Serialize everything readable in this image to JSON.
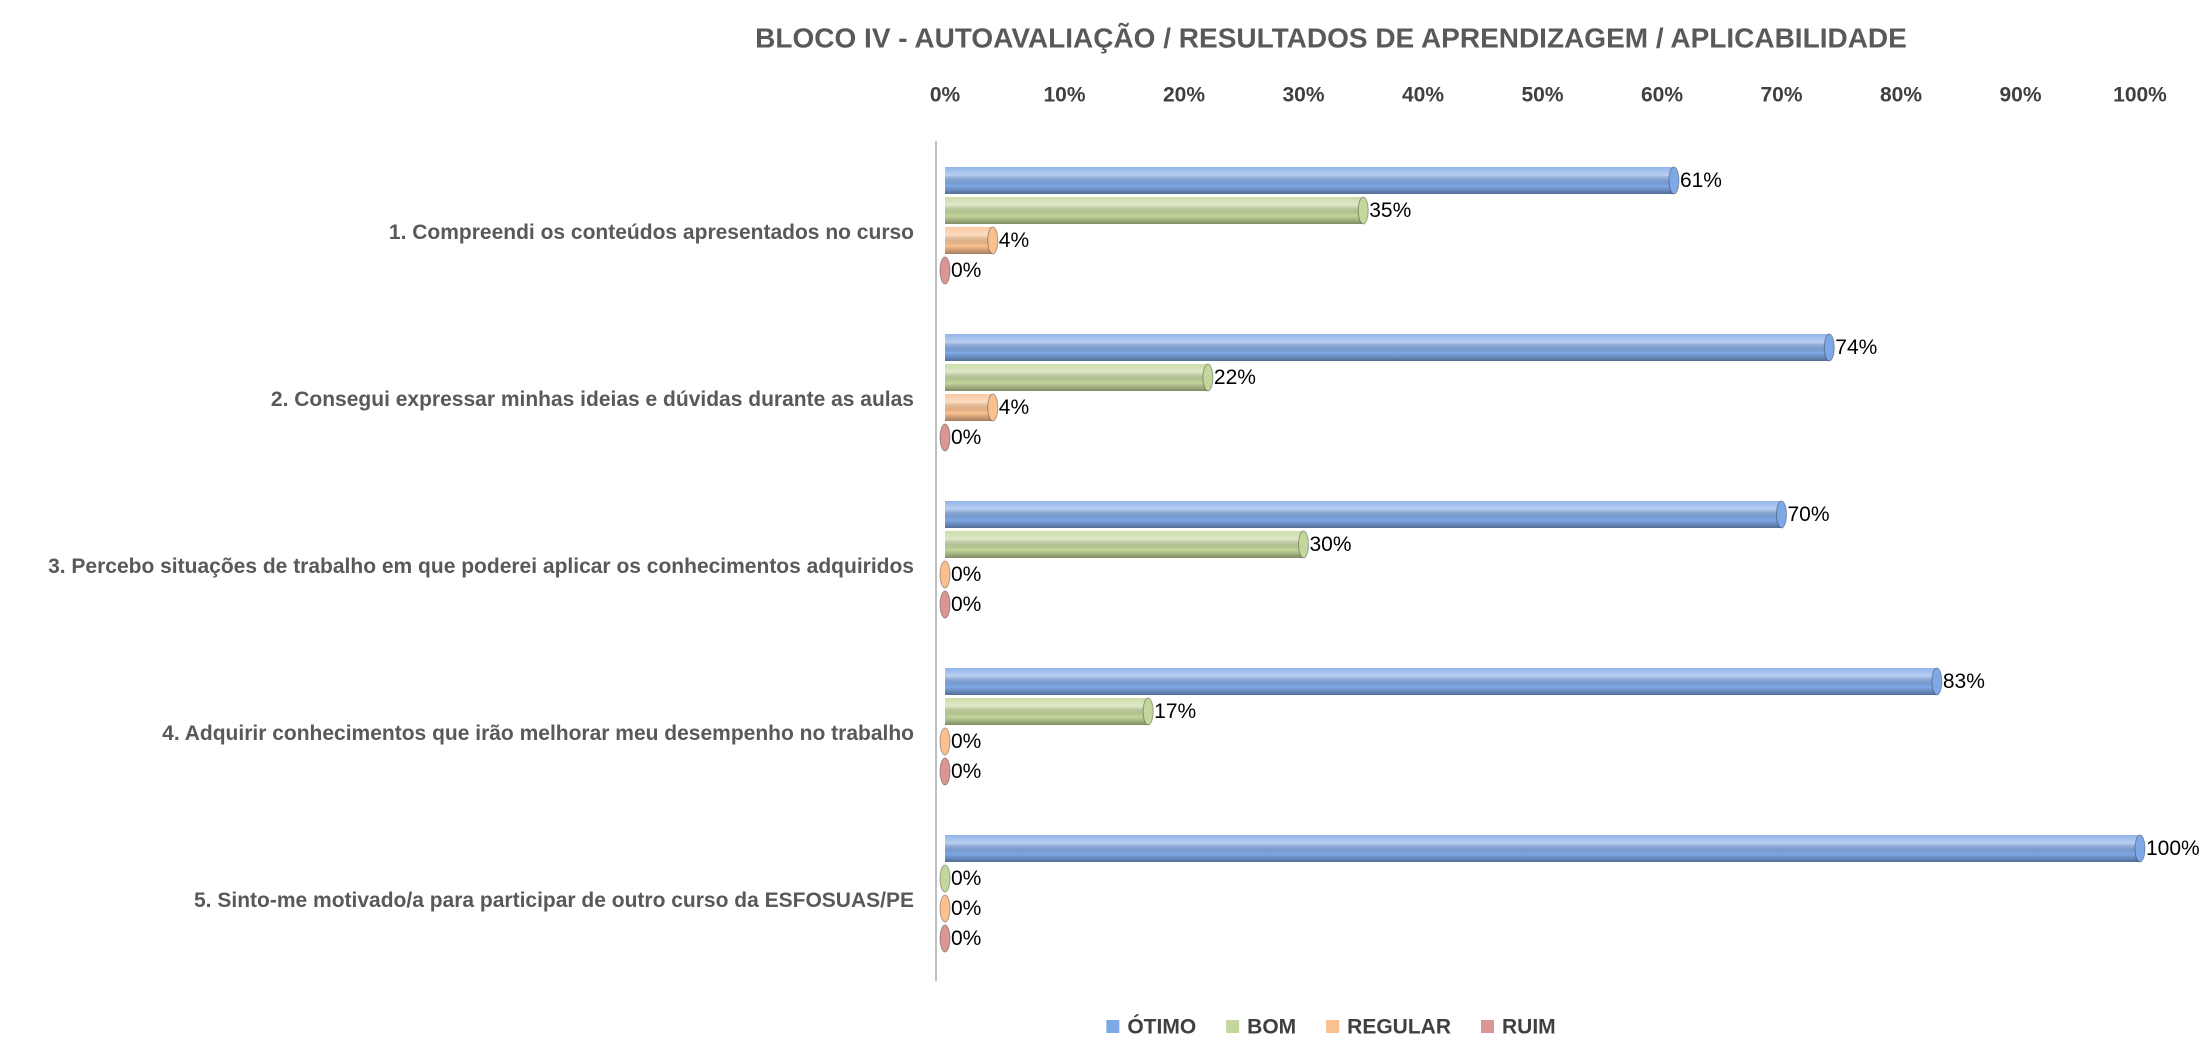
{
  "chart_data": {
    "type": "hbar",
    "title": "BLOCO IV - AUTOAVALIAÇÃO / RESULTADOS DE APRENDIZAGEM / APLICABILIDADE",
    "categories": [
      "1. Compreendi os conteúdos apresentados no curso",
      "2. Consegui expressar minhas ideias e dúvidas durante as aulas",
      "3. Percebo situações de trabalho em que poderei aplicar os conhecimentos adquiridos",
      "4. Adquirir conhecimentos que irão melhorar meu desempenho no trabalho",
      "5. Sinto-me motivado/a para participar de outro curso da ESFOSUAS/PE"
    ],
    "series": [
      {
        "name": "ÓTIMO",
        "color": "#7fa8e6",
        "values": [
          61,
          74,
          70,
          83,
          100
        ],
        "value_labels": [
          "61%",
          "74%",
          "70%",
          "83%",
          "100%"
        ]
      },
      {
        "name": "BOM",
        "color": "#c3d69b",
        "values": [
          35,
          22,
          30,
          17,
          0
        ],
        "value_labels": [
          "35%",
          "22%",
          "30%",
          "17%",
          "0%"
        ]
      },
      {
        "name": "REGULAR",
        "color": "#fac090",
        "values": [
          4,
          4,
          0,
          0,
          0
        ],
        "value_labels": [
          "4%",
          "4%",
          "0%",
          "0%",
          "0%"
        ]
      },
      {
        "name": "RUIM",
        "color": "#d99694",
        "values": [
          0,
          0,
          0,
          0,
          0
        ],
        "value_labels": [
          "0%",
          "0%",
          "0%",
          "0%",
          "0%"
        ]
      }
    ],
    "xlim": [
      0,
      100
    ],
    "xticks": [
      {
        "value": 0,
        "label": "0%"
      },
      {
        "value": 10,
        "label": "10%"
      },
      {
        "value": 20,
        "label": "20%"
      },
      {
        "value": 30,
        "label": "30%"
      },
      {
        "value": 40,
        "label": "40%"
      },
      {
        "value": 50,
        "label": "50%"
      },
      {
        "value": 60,
        "label": "60%"
      },
      {
        "value": 70,
        "label": "70%"
      },
      {
        "value": 80,
        "label": "80%"
      },
      {
        "value": 90,
        "label": "90%"
      },
      {
        "value": 100,
        "label": "100%"
      }
    ],
    "legend": "bottom"
  }
}
